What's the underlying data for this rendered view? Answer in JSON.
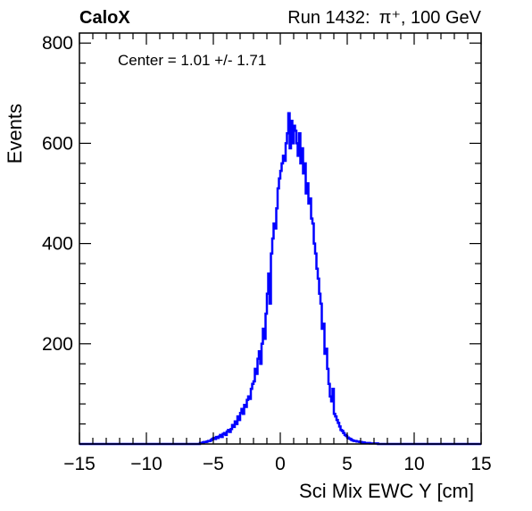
{
  "header": {
    "experiment": "CaloX",
    "run_label": "Run 1432:",
    "particle": "π⁺, 100 GeV"
  },
  "stats": {
    "text": "Center = 1.01 +/- 1.71"
  },
  "chart_data": {
    "type": "line",
    "style": "step histogram",
    "xlabel": "Sci Mix EWC Y [cm]",
    "ylabel": "Events",
    "xlim": [
      -15,
      15
    ],
    "ylim": [
      0,
      820
    ],
    "x_ticks": [
      -15,
      -10,
      -5,
      0,
      5,
      10,
      15
    ],
    "x_tick_labels": [
      "−15",
      "−10",
      "−5",
      "0",
      "5",
      "10",
      "15"
    ],
    "y_ticks": [
      200,
      400,
      600,
      800
    ],
    "y_tick_labels": [
      "200",
      "400",
      "600",
      "800"
    ],
    "grid": false,
    "line_color": "#0000ff",
    "series": [
      {
        "bin_width": 0.1,
        "x": [
          -6.0,
          -5.9,
          -5.8,
          -5.7,
          -5.6,
          -5.5,
          -5.4,
          -5.3,
          -5.2,
          -5.1,
          -5.0,
          -4.9,
          -4.8,
          -4.7,
          -4.6,
          -4.5,
          -4.4,
          -4.3,
          -4.2,
          -4.1,
          -4.0,
          -3.9,
          -3.8,
          -3.7,
          -3.6,
          -3.5,
          -3.4,
          -3.3,
          -3.2,
          -3.1,
          -3.0,
          -2.9,
          -2.8,
          -2.7,
          -2.6,
          -2.5,
          -2.4,
          -2.3,
          -2.2,
          -2.1,
          -2.0,
          -1.9,
          -1.8,
          -1.7,
          -1.6,
          -1.5,
          -1.4,
          -1.3,
          -1.2,
          -1.1,
          -1.0,
          -0.9,
          -0.8,
          -0.7,
          -0.6,
          -0.5,
          -0.4,
          -0.3,
          -0.2,
          -0.1,
          0.0,
          0.1,
          0.2,
          0.3,
          0.4,
          0.5,
          0.6,
          0.7,
          0.8,
          0.9,
          1.0,
          1.1,
          1.2,
          1.3,
          1.4,
          1.5,
          1.6,
          1.7,
          1.8,
          1.9,
          2.0,
          2.1,
          2.2,
          2.3,
          2.4,
          2.5,
          2.6,
          2.7,
          2.8,
          2.9,
          3.0,
          3.1,
          3.2,
          3.3,
          3.4,
          3.5,
          3.6,
          3.7,
          3.8,
          3.9,
          4.0,
          4.1,
          4.2,
          4.3,
          4.4,
          4.5,
          4.6,
          4.7,
          4.8,
          4.9,
          5.0,
          5.1,
          5.2,
          5.3,
          5.4,
          5.5,
          5.6,
          5.7,
          5.8,
          5.9,
          6.0,
          6.1,
          6.2,
          6.3,
          6.4,
          6.5,
          6.6,
          6.7,
          6.8,
          6.9,
          7.0,
          7.1,
          7.2,
          7.3,
          7.4,
          7.5,
          7.6,
          7.7,
          7.8,
          7.9,
          8.0
        ],
        "y": [
          2,
          2,
          3,
          4,
          4,
          5,
          6,
          6,
          8,
          10,
          12,
          10,
          14,
          12,
          15,
          18,
          14,
          20,
          22,
          18,
          25,
          28,
          24,
          30,
          38,
          34,
          45,
          40,
          55,
          48,
          62,
          70,
          60,
          78,
          74,
          88,
          95,
          90,
          110,
          120,
          125,
          150,
          140,
          170,
          185,
          160,
          200,
          230,
          210,
          260,
          300,
          340,
          280,
          380,
          410,
          440,
          430,
          470,
          510,
          530,
          545,
          560,
          575,
          565,
          600,
          620,
          660,
          590,
          645,
          600,
          635,
          625,
          600,
          575,
          620,
          560,
          590,
          540,
          560,
          500,
          520,
          480,
          490,
          450,
          440,
          400,
          380,
          350,
          330,
          300,
          280,
          230,
          240,
          180,
          190,
          150,
          120,
          95,
          85,
          110,
          60,
          55,
          48,
          42,
          35,
          28,
          26,
          22,
          18,
          16,
          13,
          11,
          10,
          8,
          7,
          6,
          6,
          5,
          5,
          4,
          4,
          3,
          3,
          2,
          2,
          2,
          2,
          1,
          1,
          1,
          1,
          1,
          1,
          0,
          0,
          0,
          0,
          0,
          0,
          0,
          0
        ]
      }
    ]
  }
}
